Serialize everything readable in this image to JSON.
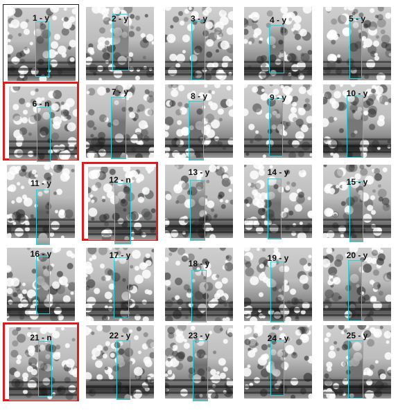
{
  "grid": {
    "tiles": [
      {
        "label": "1 - y"
      },
      {
        "label": "2 - y"
      },
      {
        "label": "3 - y"
      },
      {
        "label": "4 - y"
      },
      {
        "label": "5 - y"
      },
      {
        "label": "6 - n"
      },
      {
        "label": "7 - y"
      },
      {
        "label": "8 - y"
      },
      {
        "label": "9 - y"
      },
      {
        "label": "10 - y"
      },
      {
        "label": "11 - y"
      },
      {
        "label": "12 - n"
      },
      {
        "label": "13 - y"
      },
      {
        "label": "14 - y"
      },
      {
        "label": "15 - y"
      },
      {
        "label": "16 - y"
      },
      {
        "label": "17 - y"
      },
      {
        "label": "18 - y"
      },
      {
        "label": "19 - y"
      },
      {
        "label": "20 - y"
      },
      {
        "label": "21 - n"
      },
      {
        "label": "22 - y"
      },
      {
        "label": "23 - y"
      },
      {
        "label": "24 - y"
      },
      {
        "label": "25 - y"
      }
    ],
    "selected": [
      "6 - n",
      "12 - n",
      "21 - n"
    ],
    "current": "1 - y"
  },
  "colors": {
    "selection_border": "#e01a1a",
    "roi_box": "#2bd1d8",
    "current_border": "#1a1a1a"
  }
}
